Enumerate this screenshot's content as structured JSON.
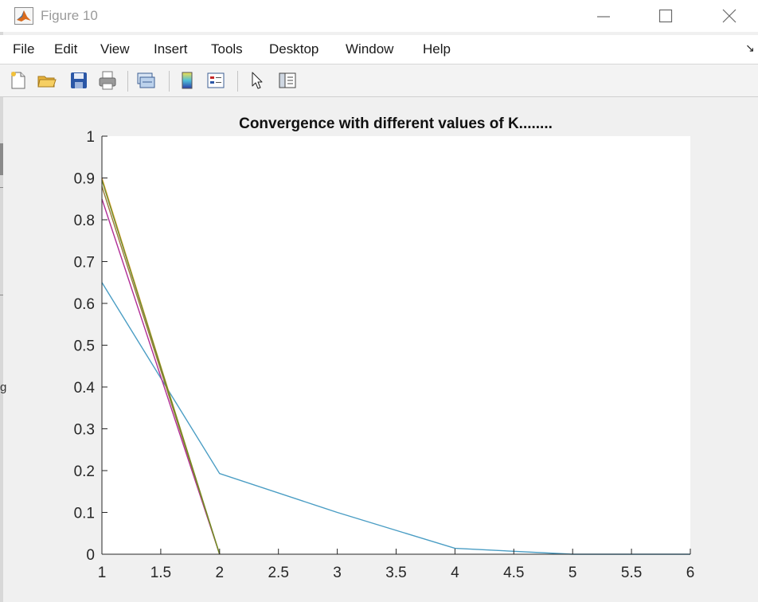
{
  "window": {
    "title": "Figure 10",
    "controls": [
      "minimize-icon",
      "maximize-icon",
      "close-icon"
    ]
  },
  "menu": {
    "items": [
      "File",
      "Edit",
      "View",
      "Insert",
      "Tools",
      "Desktop",
      "Window",
      "Help"
    ],
    "dock_arrow": "↘"
  },
  "toolbar": {
    "buttons": [
      "new-figure-icon",
      "open-file-icon",
      "save-icon",
      "print-icon",
      "link-plot-icon",
      "colorbar-icon",
      "legend-icon",
      "pointer-icon",
      "property-inspector-icon"
    ]
  },
  "left_edge_glyph": "g",
  "colors": {
    "series_1": "#4a9dc4",
    "series_2": "#b02c96",
    "series_3": "#9a7a3a",
    "series_4": "#eaa83a",
    "series_5": "#6a8a2a"
  },
  "chart_data": {
    "type": "line",
    "title": "Convergence with different values of K........",
    "xlabel": "",
    "ylabel": "",
    "xlim": [
      1,
      6
    ],
    "ylim": [
      0,
      1
    ],
    "xticks": [
      "1",
      "1.5",
      "2",
      "2.5",
      "3",
      "3.5",
      "4",
      "4.5",
      "5",
      "5.5",
      "6"
    ],
    "yticks": [
      "0",
      "0.1",
      "0.2",
      "0.3",
      "0.4",
      "0.5",
      "0.6",
      "0.7",
      "0.8",
      "0.9",
      "1"
    ],
    "grid": false,
    "series": [
      {
        "color": "#4a9dc4",
        "x": [
          1,
          2,
          3,
          4,
          5,
          6
        ],
        "y": [
          0.65,
          0.193,
          0.1,
          0.014,
          0,
          0
        ]
      },
      {
        "color": "#b02c96",
        "x": [
          1,
          2
        ],
        "y": [
          0.85,
          0
        ]
      },
      {
        "color": "#9a7a3a",
        "x": [
          1,
          2
        ],
        "y": [
          0.88,
          0
        ]
      },
      {
        "color": "#eaa83a",
        "x": [
          1,
          2
        ],
        "y": [
          0.9,
          0
        ]
      },
      {
        "color": "#6a8a2a",
        "x": [
          1,
          2
        ],
        "y": [
          0.895,
          0
        ]
      }
    ]
  }
}
